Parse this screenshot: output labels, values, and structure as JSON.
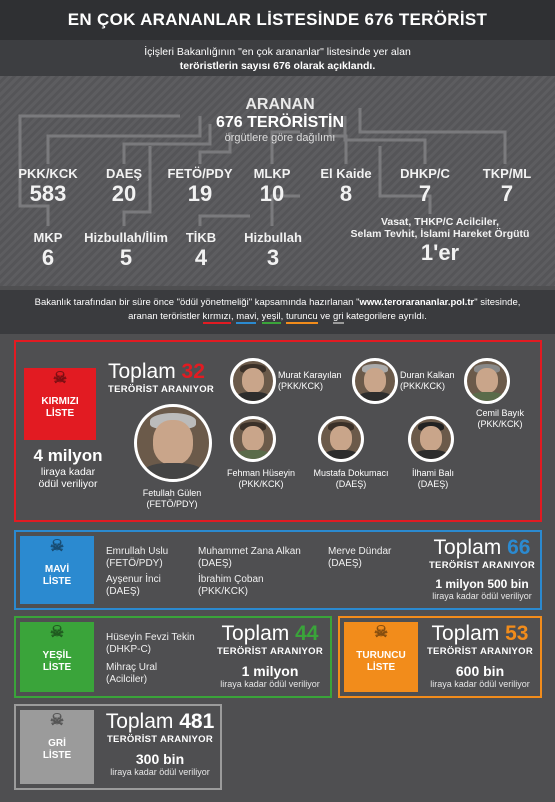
{
  "header": {
    "title": "EN ÇOK ARANANLAR LİSTESİNDE 676 TERÖRİST",
    "sub_line1": "İçişleri Bakanlığının \"en çok arananlar\" listesinde yer alan",
    "sub_line2": "teröristlerin sayısı 676 olarak açıklandı."
  },
  "center": {
    "line1": "ARANAN",
    "line2": "676 TERÖRİSTİN",
    "line3": "örgütlere göre dağılımı"
  },
  "orgs_row1": [
    {
      "label": "PKK/KCK",
      "value": "583"
    },
    {
      "label": "DAEŞ",
      "value": "20"
    },
    {
      "label": "FETÖ/PDY",
      "value": "19"
    },
    {
      "label": "MLKP",
      "value": "10"
    },
    {
      "label": "El Kaide",
      "value": "8"
    },
    {
      "label": "DHKP/C",
      "value": "7"
    },
    {
      "label": "TKP/ML",
      "value": "7"
    }
  ],
  "orgs_row2": [
    {
      "label": "MKP",
      "value": "6"
    },
    {
      "label": "Hizbullah/İlim",
      "value": "5"
    },
    {
      "label": "TİKB",
      "value": "4"
    },
    {
      "label": "Hizbullah",
      "value": "3"
    }
  ],
  "orgs_misc": {
    "label1": "Vasat, THKP/C Acilciler,",
    "label2": "Selam Tevhit, İslami Hareket Örgütü",
    "value": "1'er"
  },
  "info": {
    "line1a": "Bakanlık tarafından bir süre önce \"ödül yönetmeliği\" kapsamında hazırlanan \"",
    "line1b": "www.terorarananlar.pol.tr",
    "line1c": "\" sitesinde,",
    "line2a": "aranan teröristler ",
    "kirmizi": "kırmızı",
    "mavi": "mavi",
    "yesil": "yeşil",
    "turuncu": "turuncu",
    "ve": " ve ",
    "gri": "gri",
    "line2b": " kategorilere ayrıldı.",
    "sep": ", "
  },
  "red": {
    "tag1": "KIRMIZI",
    "tag2": "LİSTE",
    "toplam_word": "Toplam",
    "toplam_num": "32",
    "aranyor": "TERÖRİST ARANIYOR",
    "odul_big": "4 milyon",
    "odul_l2": "liraya kadar",
    "odul_l3": "ödül veriliyor",
    "people": [
      {
        "name": "Murat Karayılan",
        "org": "(PKK/KCK)"
      },
      {
        "name": "Duran Kalkan",
        "org": "(PKK/KCK)"
      },
      {
        "name": "Cemil Bayık",
        "org": "(PKK/KCK)"
      },
      {
        "name": "Fetullah Gülen",
        "org": "(FETÖ/PDY)"
      },
      {
        "name": "Fehman Hüseyin",
        "org": "(PKK/KCK)"
      },
      {
        "name": "Mustafa Dokumacı",
        "org": "(DAEŞ)"
      },
      {
        "name": "İlhami Balı",
        "org": "(DAEŞ)"
      }
    ]
  },
  "blue": {
    "tag1": "MAVİ",
    "tag2": "LİSTE",
    "names": [
      {
        "name": "Emrullah Uslu",
        "org": "(FETÖ/PDY)"
      },
      {
        "name": "Ayşenur İnci",
        "org": "(DAEŞ)"
      },
      {
        "name": "Muhammet Zana Alkan",
        "org": "(DAEŞ)"
      },
      {
        "name": "İbrahim Çoban",
        "org": "(PKK/KCK)"
      },
      {
        "name": "Merve Dündar",
        "org": "(DAEŞ)"
      }
    ],
    "toplam_word": "Toplam",
    "toplam_num": "66",
    "aranyor": "TERÖRİST ARANIYOR",
    "odul_big": "1 milyon 500 bin",
    "odul_small": "liraya kadar ödül veriliyor"
  },
  "green": {
    "tag1": "YEŞİL",
    "tag2": "LİSTE",
    "names": [
      {
        "name": "Hüseyin Fevzi Tekin",
        "org": "(DHKP-C)"
      },
      {
        "name": "Mihraç Ural",
        "org": "(Acilciler)"
      }
    ],
    "toplam_word": "Toplam",
    "toplam_num": "44",
    "aranyor": "TERÖRİST ARANIYOR",
    "odul_big": "1 milyon",
    "odul_small": "liraya kadar ödül veriliyor"
  },
  "orange": {
    "tag1": "TURUNCU",
    "tag2": "LİSTE",
    "toplam_word": "Toplam",
    "toplam_num": "53",
    "aranyor": "TERÖRİST ARANIYOR",
    "odul_big": "600 bin",
    "odul_small": "liraya kadar ödül veriliyor"
  },
  "gray": {
    "tag1": "GRİ",
    "tag2": "LİSTE",
    "toplam_word": "Toplam",
    "toplam_num": "481",
    "aranyor": "TERÖRİST ARANIYOR",
    "odul_big": "300 bin",
    "odul_small": "liraya kadar ödül veriliyor"
  },
  "colors": {
    "red": "#e21b22",
    "blue": "#2b8ad0",
    "green": "#3aa43a",
    "orange": "#f28c1b",
    "gray": "#9b9b9b",
    "background": "#4f4f51"
  },
  "icons": [
    "skull-icon"
  ]
}
